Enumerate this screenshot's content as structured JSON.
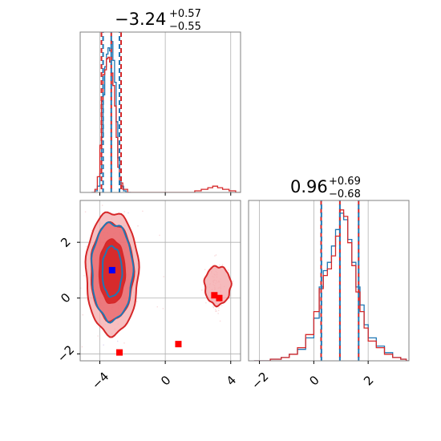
{
  "colors": {
    "blue": "#1f77b4",
    "red": "#d62728",
    "red_light": "#f4a9ab",
    "red_mid": "#e8686b",
    "marker_red": "#ff0000",
    "marker_blue": "#0000ff",
    "grid": "#b0b0b0",
    "frame": "#808080"
  },
  "titles": {
    "p1_value": "−3.24",
    "p1_plus": "+0.57",
    "p1_minus": "−0.55",
    "p2_value": "0.96",
    "p2_plus": "+0.69",
    "p2_minus": "−0.68"
  },
  "chart_data": [
    {
      "type": "histogram",
      "panel": "top-left (parameter 1 marginal)",
      "xlim": [
        -5.2,
        4.6
      ],
      "x_ticks": [
        -4,
        0,
        4
      ],
      "grid": true,
      "series": [
        {
          "color": "blue",
          "bins": [
            [
              -4.5,
              0
            ],
            [
              -4.3,
              1
            ],
            [
              -4.15,
              4
            ],
            [
              -4.0,
              12
            ],
            [
              -3.9,
              35
            ],
            [
              -3.8,
              62
            ],
            [
              -3.7,
              80
            ],
            [
              -3.6,
              88
            ],
            [
              -3.5,
              92
            ],
            [
              -3.4,
              90
            ],
            [
              -3.3,
              96
            ],
            [
              -3.2,
              84
            ],
            [
              -3.1,
              70
            ],
            [
              -3.0,
              45
            ],
            [
              -2.9,
              22
            ],
            [
              -2.8,
              10
            ],
            [
              -2.7,
              4
            ],
            [
              -2.55,
              1
            ],
            [
              -2.4,
              0
            ]
          ]
        },
        {
          "color": "red",
          "bins": [
            [
              -4.5,
              0
            ],
            [
              -4.3,
              2
            ],
            [
              -4.15,
              10
            ],
            [
              -4.0,
              30
            ],
            [
              -3.9,
              58
            ],
            [
              -3.8,
              75
            ],
            [
              -3.7,
              78
            ],
            [
              -3.6,
              85
            ],
            [
              -3.5,
              86
            ],
            [
              -3.4,
              83
            ],
            [
              -3.3,
              76
            ],
            [
              -3.2,
              68
            ],
            [
              -3.1,
              55
            ],
            [
              -3.0,
              35
            ],
            [
              -2.9,
              16
            ],
            [
              -2.8,
              6
            ],
            [
              -2.6,
              2
            ],
            [
              -2.3,
              0
            ],
            [
              1.5,
              0
            ],
            [
              1.8,
              1
            ],
            [
              2.2,
              2
            ],
            [
              2.6,
              3
            ],
            [
              2.9,
              4
            ],
            [
              3.2,
              3
            ],
            [
              3.5,
              2
            ],
            [
              3.9,
              1
            ],
            [
              4.3,
              0
            ]
          ]
        }
      ],
      "quantile_lines": [
        {
          "color": "red",
          "values": [
            -3.9,
            -3.3,
            -2.7
          ]
        },
        {
          "color": "blue",
          "values": [
            -3.8,
            -3.3,
            -2.8
          ]
        }
      ]
    },
    {
      "type": "contour",
      "panel": "bottom-left (parameter 1 vs parameter 2)",
      "xlim": [
        -5.2,
        4.6
      ],
      "ylim": [
        -2.25,
        3.5
      ],
      "x_ticks": [
        -4,
        0,
        4
      ],
      "y_ticks": [
        -2,
        0,
        2
      ],
      "grid": true,
      "red_contours": {
        "outer": {
          "cx": -3.25,
          "cy": 0.9,
          "rx": 1.6,
          "ry": 2.2
        },
        "middle": {
          "cx": -3.25,
          "cy": 0.95,
          "rx": 1.3,
          "ry": 1.75
        },
        "inner": {
          "cx": -3.25,
          "cy": 0.95,
          "rx": 0.8,
          "ry": 1.15
        },
        "secondary": {
          "cx": 3.2,
          "cy": 0.45,
          "rx": 0.8,
          "ry": 0.7
        }
      },
      "blue_contours": {
        "outer": {
          "cx": -3.25,
          "cy": 0.95,
          "rx": 1.25,
          "ry": 1.75
        },
        "inner": {
          "cx": -3.25,
          "cy": 0.95,
          "rx": 0.6,
          "ry": 0.9
        }
      },
      "markers": [
        {
          "color": "marker_red",
          "x": -3.25,
          "y": 1.0
        },
        {
          "color": "marker_blue",
          "x": -3.25,
          "y": 1.0
        },
        {
          "color": "marker_red",
          "x": 3.0,
          "y": 0.1
        },
        {
          "color": "marker_red",
          "x": 3.3,
          "y": 0.0
        },
        {
          "color": "marker_red",
          "x": -2.8,
          "y": -1.95
        },
        {
          "color": "marker_red",
          "x": 0.8,
          "y": -1.65
        }
      ]
    },
    {
      "type": "histogram",
      "panel": "bottom-right (parameter 2 marginal)",
      "xlim": [
        -2.4,
        3.5
      ],
      "x_ticks": [
        -2,
        0,
        2
      ],
      "grid": true,
      "series": [
        {
          "color": "blue",
          "bins": [
            [
              -2.2,
              0
            ],
            [
              -1.6,
              1
            ],
            [
              -1.2,
              2
            ],
            [
              -0.9,
              4
            ],
            [
              -0.6,
              7
            ],
            [
              -0.3,
              14
            ],
            [
              0.0,
              26
            ],
            [
              0.2,
              45
            ],
            [
              0.35,
              55
            ],
            [
              0.5,
              60
            ],
            [
              0.65,
              70
            ],
            [
              0.8,
              80
            ],
            [
              0.95,
              90
            ],
            [
              1.1,
              86
            ],
            [
              1.25,
              74
            ],
            [
              1.4,
              60
            ],
            [
              1.55,
              45
            ],
            [
              1.7,
              34
            ],
            [
              1.85,
              22
            ],
            [
              2.0,
              14
            ],
            [
              2.3,
              9
            ],
            [
              2.6,
              5
            ],
            [
              2.9,
              2
            ],
            [
              3.2,
              1
            ],
            [
              3.4,
              0
            ]
          ]
        },
        {
          "color": "red",
          "bins": [
            [
              -2.2,
              0
            ],
            [
              -1.6,
              1
            ],
            [
              -1.2,
              2
            ],
            [
              -0.9,
              4
            ],
            [
              -0.6,
              8
            ],
            [
              -0.3,
              16
            ],
            [
              0.0,
              30
            ],
            [
              0.2,
              44
            ],
            [
              0.35,
              52
            ],
            [
              0.5,
              56
            ],
            [
              0.65,
              64
            ],
            [
              0.8,
              76
            ],
            [
              0.95,
              92
            ],
            [
              1.1,
              88
            ],
            [
              1.25,
              72
            ],
            [
              1.4,
              58
            ],
            [
              1.55,
              42
            ],
            [
              1.7,
              30
            ],
            [
              1.85,
              20
            ],
            [
              2.0,
              12
            ],
            [
              2.3,
              8
            ],
            [
              2.6,
              4
            ],
            [
              2.9,
              2
            ],
            [
              3.2,
              1
            ],
            [
              3.4,
              0
            ]
          ]
        }
      ],
      "quantile_lines": [
        {
          "color": "red",
          "values": [
            0.27,
            0.96,
            1.65
          ]
        },
        {
          "color": "blue",
          "values": [
            0.28,
            0.96,
            1.65
          ]
        }
      ]
    }
  ]
}
